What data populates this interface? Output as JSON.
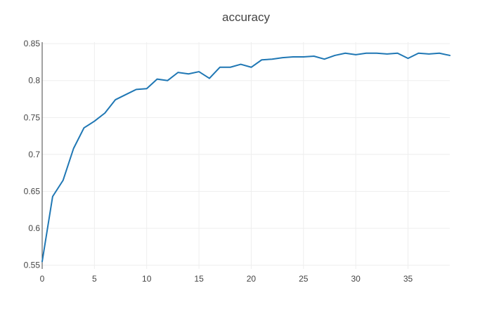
{
  "chart_data": {
    "type": "line",
    "title": "accuracy",
    "xlabel": "",
    "ylabel": "",
    "xlim": [
      0,
      39
    ],
    "ylim": [
      0.545,
      0.852
    ],
    "x_ticks": [
      0,
      5,
      10,
      15,
      20,
      25,
      30,
      35
    ],
    "x_tick_labels": [
      "0",
      "5",
      "10",
      "15",
      "20",
      "25",
      "30",
      "35"
    ],
    "y_ticks": [
      0.55,
      0.6,
      0.65,
      0.7,
      0.75,
      0.8,
      0.85
    ],
    "y_tick_labels": [
      "0.55",
      "0.6",
      "0.65",
      "0.7",
      "0.75",
      "0.8",
      "0.85"
    ],
    "grid": true,
    "line_color": "#1f77b4",
    "grid_color": "#eeeeee",
    "series": [
      {
        "x": [
          0,
          1,
          2,
          3,
          4,
          5,
          6,
          7,
          8,
          9,
          10,
          11,
          12,
          13,
          14,
          15,
          16,
          17,
          18,
          19,
          20,
          21,
          22,
          23,
          24,
          25,
          26,
          27,
          28,
          29,
          30,
          31,
          32,
          33,
          34,
          35,
          36,
          37,
          38,
          39
        ],
        "values": [
          0.555,
          0.643,
          0.665,
          0.708,
          0.736,
          0.745,
          0.756,
          0.774,
          0.781,
          0.788,
          0.789,
          0.802,
          0.8,
          0.811,
          0.809,
          0.812,
          0.803,
          0.818,
          0.818,
          0.822,
          0.818,
          0.828,
          0.829,
          0.831,
          0.832,
          0.832,
          0.833,
          0.829,
          0.834,
          0.837,
          0.835,
          0.837,
          0.837,
          0.836,
          0.837,
          0.83,
          0.837,
          0.836,
          0.837,
          0.834
        ]
      }
    ]
  }
}
